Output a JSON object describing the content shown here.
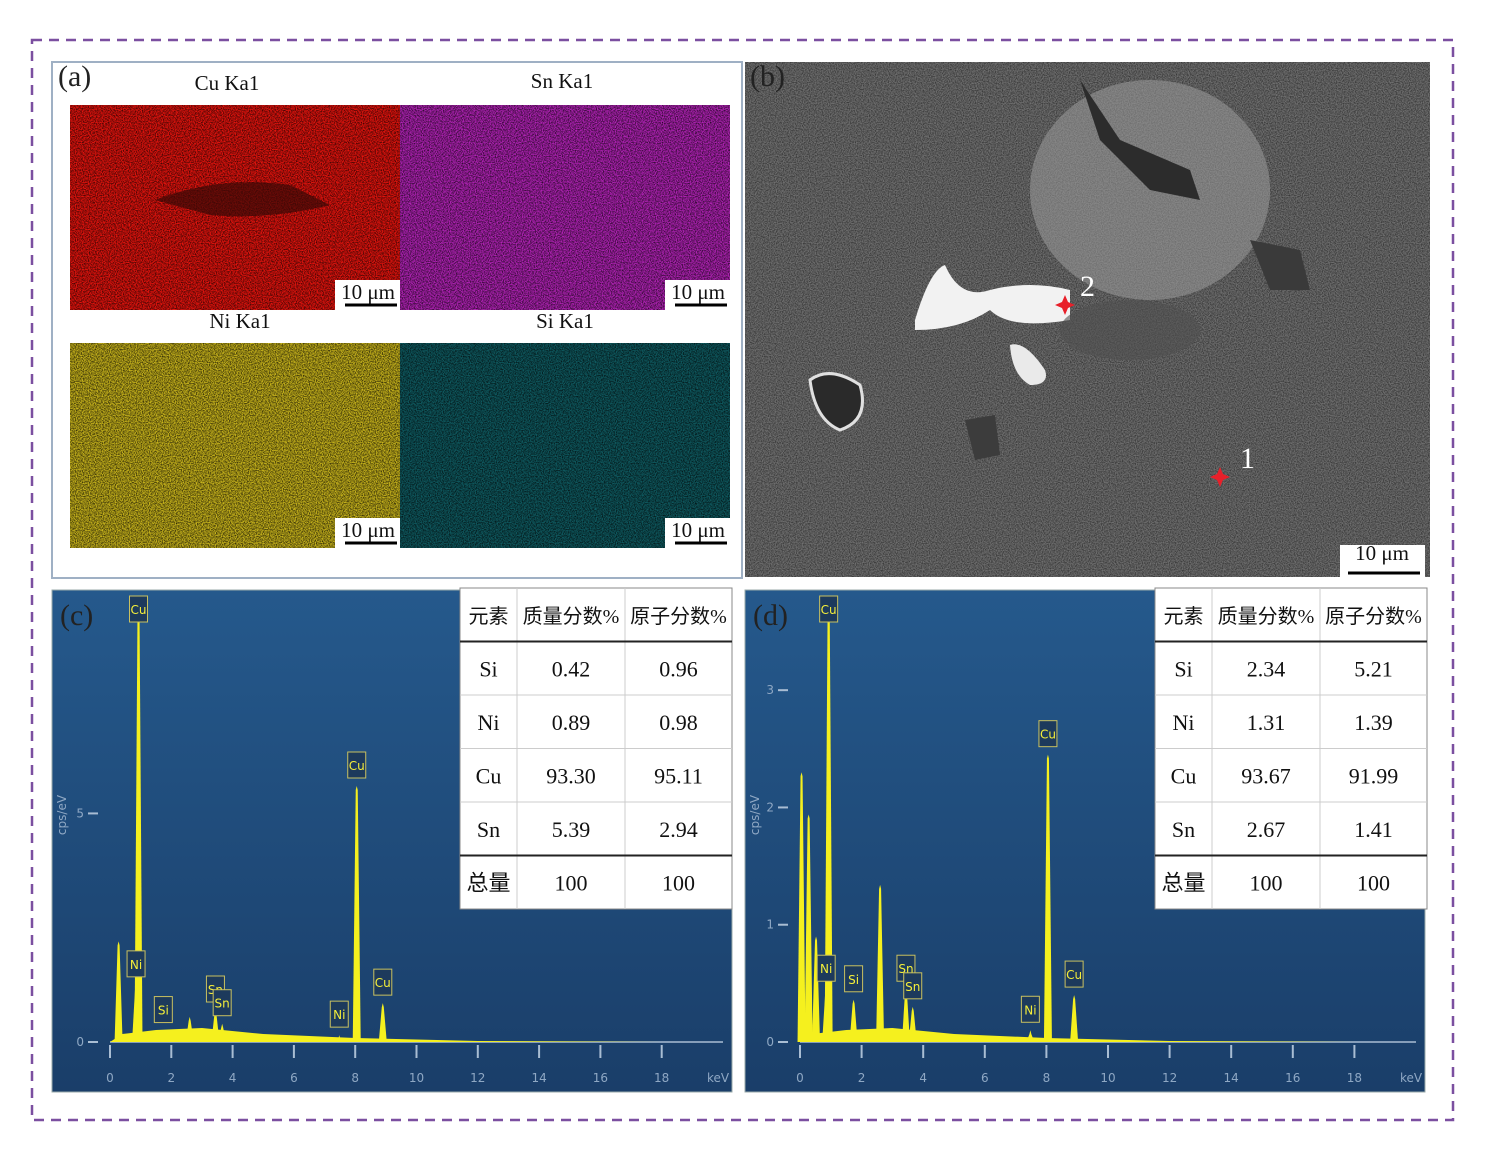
{
  "panel_a": {
    "label": "(a)",
    "maps": [
      {
        "title": "Cu Ka1",
        "color": "#e5140e",
        "scale_bar": "10 μm"
      },
      {
        "title": "Sn Ka1",
        "color": "#b123b5",
        "scale_bar": "10 μm"
      },
      {
        "title": "Ni Ka1",
        "color": "#c8b41c",
        "scale_bar": "10 μm"
      },
      {
        "title": "Si Ka1",
        "color": "#0f5a60",
        "scale_bar": "10 μm"
      }
    ]
  },
  "panel_b": {
    "label": "(b)",
    "points": [
      {
        "label": "1"
      },
      {
        "label": "2"
      }
    ],
    "scale_bar": "10 μm"
  },
  "chart_data": [
    {
      "type": "spectrum",
      "label": "(c)",
      "y_label": "cps/eV",
      "x_unit": "keV",
      "color": "#f5f01e",
      "xlim": [
        0,
        20
      ],
      "xticks": [
        0,
        2,
        4,
        6,
        8,
        10,
        12,
        14,
        16,
        18
      ],
      "ylim": [
        0,
        9.8
      ],
      "yticks": [
        0,
        5
      ],
      "peaks": [
        {
          "x": 0.28,
          "height": 2.2
        },
        {
          "x": 0.93,
          "height": 9.5,
          "label": "Cu"
        },
        {
          "x": 0.85,
          "height": 1.25,
          "label": "Ni"
        },
        {
          "x": 1.74,
          "height": 0.25,
          "label": "Si"
        },
        {
          "x": 2.6,
          "height": 0.55
        },
        {
          "x": 3.44,
          "height": 0.7,
          "label": "Sn"
        },
        {
          "x": 3.66,
          "height": 0.4,
          "label": "Sn"
        },
        {
          "x": 7.48,
          "height": 0.15,
          "label": "Ni"
        },
        {
          "x": 8.05,
          "height": 5.6,
          "label": "Cu"
        },
        {
          "x": 8.9,
          "height": 0.85,
          "label": "Cu"
        }
      ],
      "table": {
        "header": [
          "元素",
          "质量分数%",
          "原子分数%"
        ],
        "rows": [
          [
            "Si",
            "0.42",
            "0.96"
          ],
          [
            "Ni",
            "0.89",
            "0.98"
          ],
          [
            "Cu",
            "93.30",
            "95.11"
          ],
          [
            "Sn",
            "5.39",
            "2.94"
          ],
          [
            "总量",
            "100",
            "100"
          ]
        ]
      }
    },
    {
      "type": "spectrum",
      "label": "(d)",
      "y_label": "cps/eV",
      "x_unit": "keV",
      "color": "#f5f01e",
      "xlim": [
        0,
        20
      ],
      "xticks": [
        0,
        2,
        4,
        6,
        8,
        10,
        12,
        14,
        16,
        18
      ],
      "ylim": [
        0,
        3.82
      ],
      "yticks": [
        0,
        1,
        2,
        3
      ],
      "peaks": [
        {
          "x": 0.05,
          "height": 2.3
        },
        {
          "x": 0.28,
          "height": 1.94
        },
        {
          "x": 0.52,
          "height": 0.9
        },
        {
          "x": 0.93,
          "height": 3.78,
          "label": "Cu"
        },
        {
          "x": 0.85,
          "height": 0.45,
          "label": "Ni"
        },
        {
          "x": 1.74,
          "height": 0.36,
          "label": "Si"
        },
        {
          "x": 2.6,
          "height": 1.34
        },
        {
          "x": 3.44,
          "height": 0.45,
          "label": "Sn"
        },
        {
          "x": 3.66,
          "height": 0.3,
          "label": "Sn"
        },
        {
          "x": 7.48,
          "height": 0.1,
          "label": "Ni"
        },
        {
          "x": 8.05,
          "height": 2.45,
          "label": "Cu"
        },
        {
          "x": 8.9,
          "height": 0.4,
          "label": "Cu"
        }
      ],
      "table": {
        "header": [
          "元素",
          "质量分数%",
          "原子分数%"
        ],
        "rows": [
          [
            "Si",
            "2.34",
            "5.21"
          ],
          [
            "Ni",
            "1.31",
            "1.39"
          ],
          [
            "Cu",
            "93.67",
            "91.99"
          ],
          [
            "Sn",
            "2.67",
            "1.41"
          ],
          [
            "总量",
            "100",
            "100"
          ]
        ]
      }
    }
  ]
}
